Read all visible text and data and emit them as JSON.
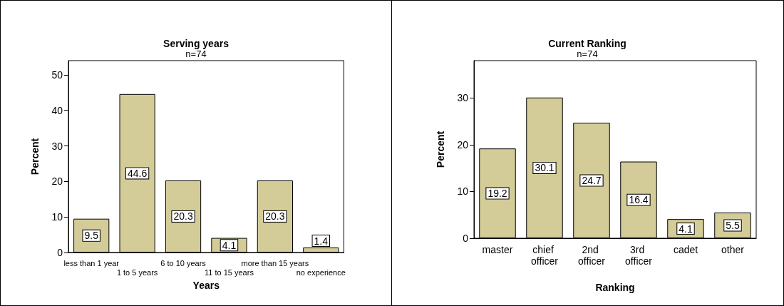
{
  "chart_data": [
    {
      "type": "bar",
      "title": "Serving years",
      "subtitle": "n=74",
      "xlabel": "Years",
      "ylabel": "Percent",
      "categories": [
        "less than 1 year",
        "1 to 5 years",
        "6 to 10 years",
        "11 to 15 years",
        "more than 15 years",
        "no experience"
      ],
      "values": [
        9.5,
        44.6,
        20.3,
        4.1,
        20.3,
        1.4
      ],
      "color": "#d3cc98",
      "ylim": [
        0,
        54
      ],
      "yticks": [
        0,
        10,
        20,
        30,
        40,
        50
      ],
      "data_labels": true
    },
    {
      "type": "bar",
      "title": "Current Ranking",
      "subtitle": "n=74",
      "xlabel": "Ranking",
      "ylabel": "Percent",
      "categories": [
        "master",
        "chief officer",
        "2nd officer",
        "3rd officer",
        "cadet",
        "other"
      ],
      "values": [
        19.2,
        30.1,
        24.7,
        16.4,
        4.1,
        5.5
      ],
      "color": "#d3cc98",
      "ylim": [
        0,
        38
      ],
      "yticks": [
        0,
        10,
        20,
        30
      ],
      "data_labels": true
    }
  ]
}
